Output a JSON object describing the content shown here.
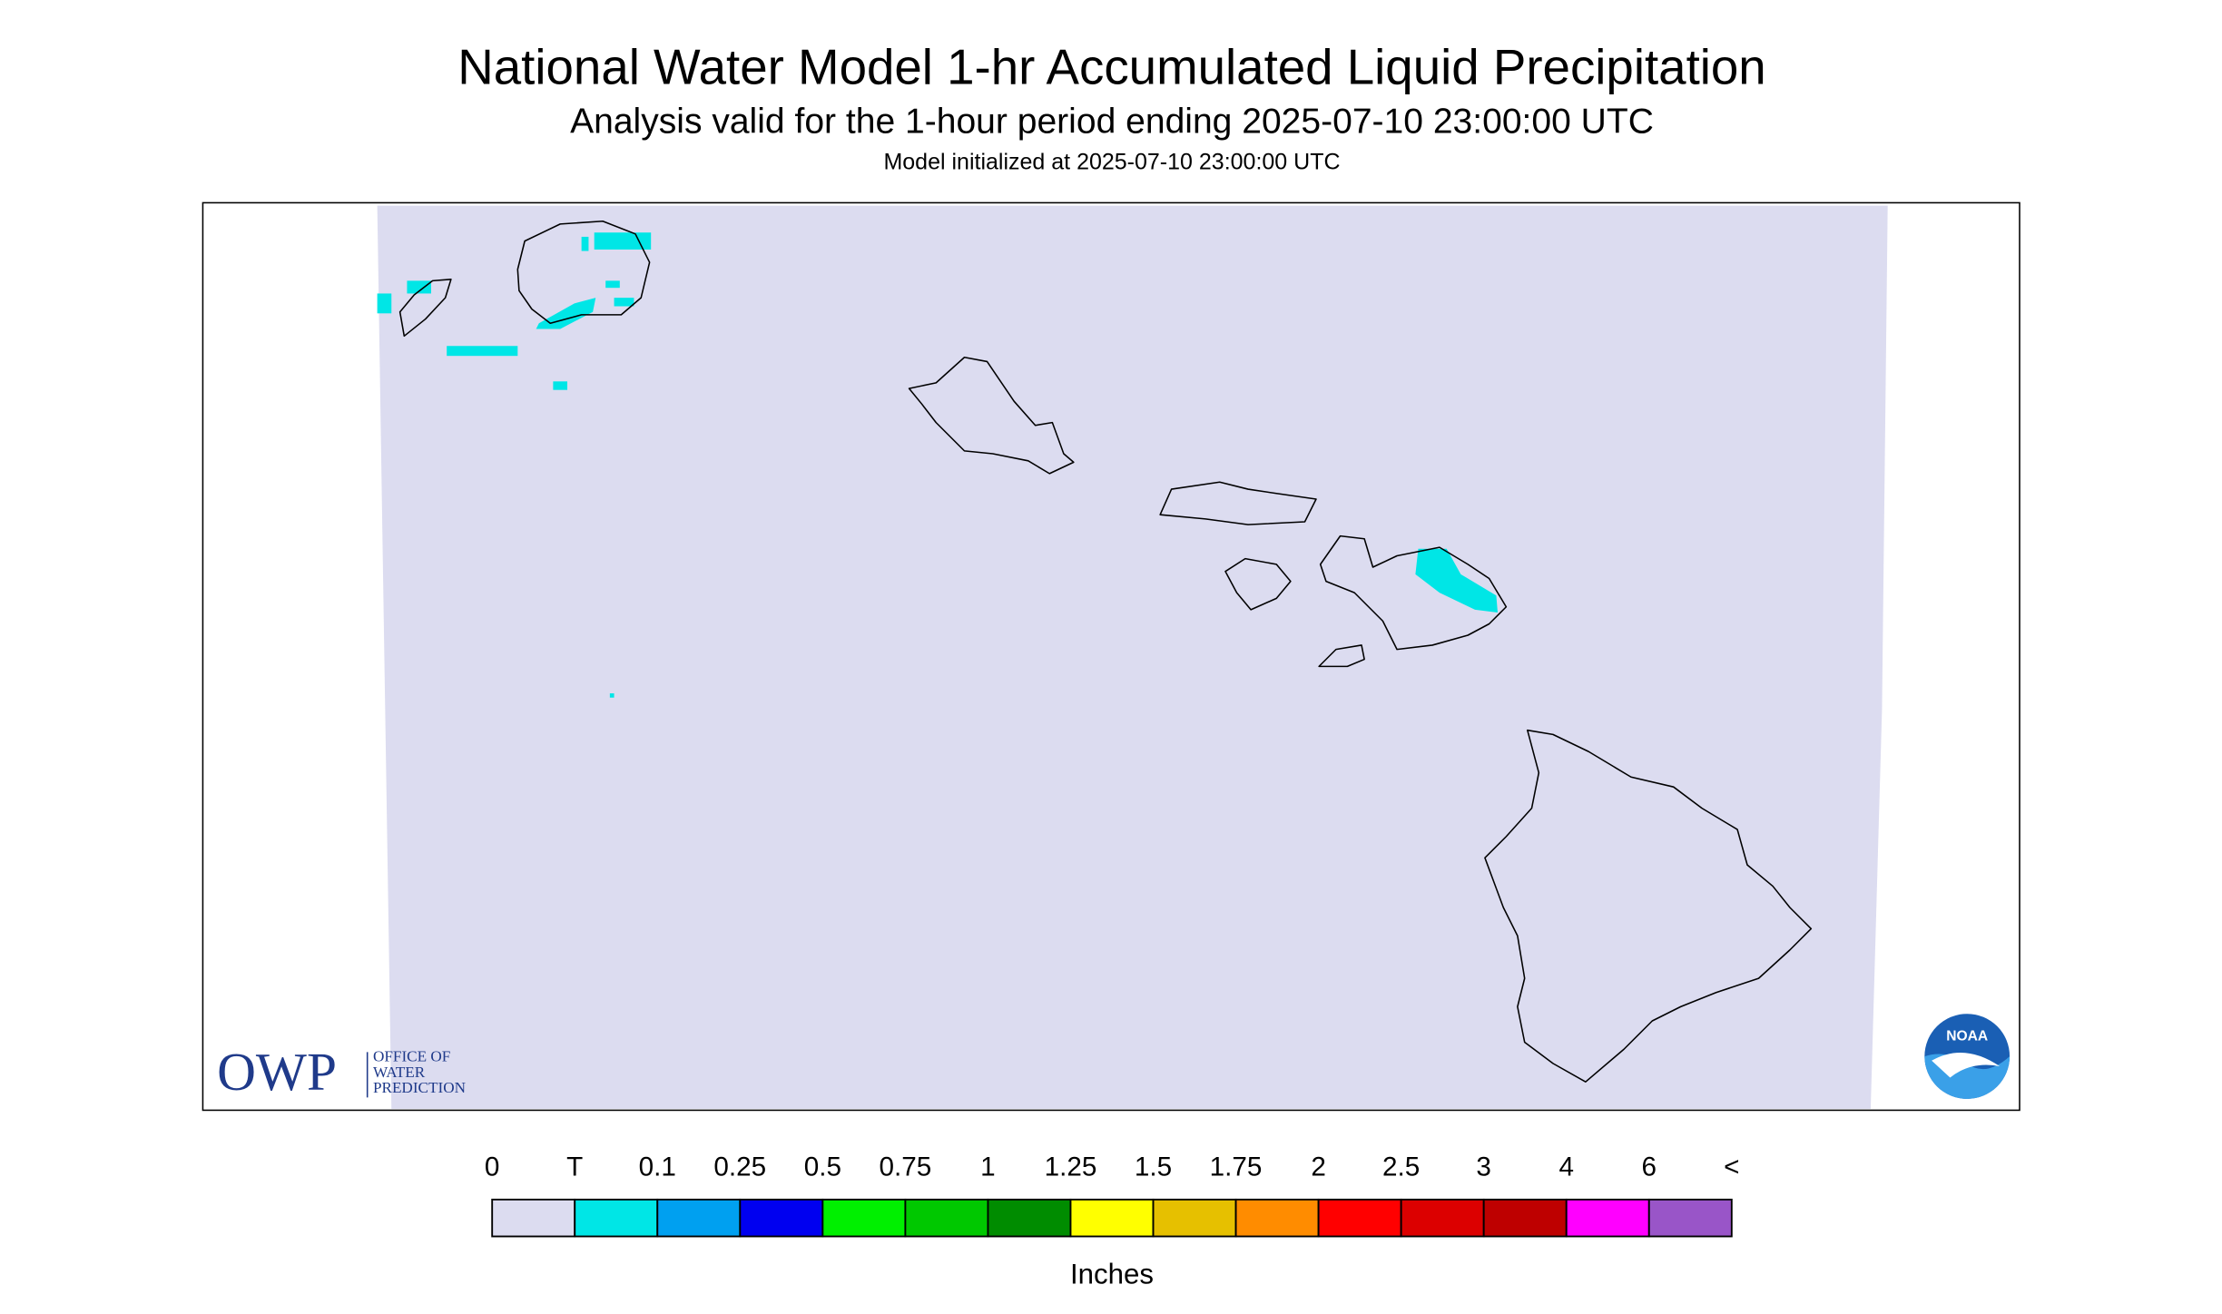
{
  "header": {
    "title": "National Water Model 1-hr Accumulated Liquid Precipitation",
    "subtitle": "Analysis valid for the 1-hour period ending 2025-07-10 23:00:00 UTC",
    "init": "Model initialized at 2025-07-10 23:00:00 UTC"
  },
  "logos": {
    "owp": "OWP",
    "owp_lines": [
      "OFFICE OF",
      "WATER",
      "PREDICTION"
    ],
    "noaa": "NOAA"
  },
  "legend": {
    "labels": [
      "0",
      "T",
      "0.1",
      "0.25",
      "0.5",
      "0.75",
      "1",
      "1.25",
      "1.5",
      "1.75",
      "2",
      "2.5",
      "3",
      "4",
      "6",
      "<"
    ],
    "colors": [
      "#dcdcf0",
      "#00e6e6",
      "#00a0f0",
      "#0000f0",
      "#00f000",
      "#00c800",
      "#008c00",
      "#ffff00",
      "#e6c000",
      "#ff8c00",
      "#ff0000",
      "#dc0000",
      "#be0000",
      "#ff00ff",
      "#9955c8"
    ],
    "title": "Inches"
  }
}
